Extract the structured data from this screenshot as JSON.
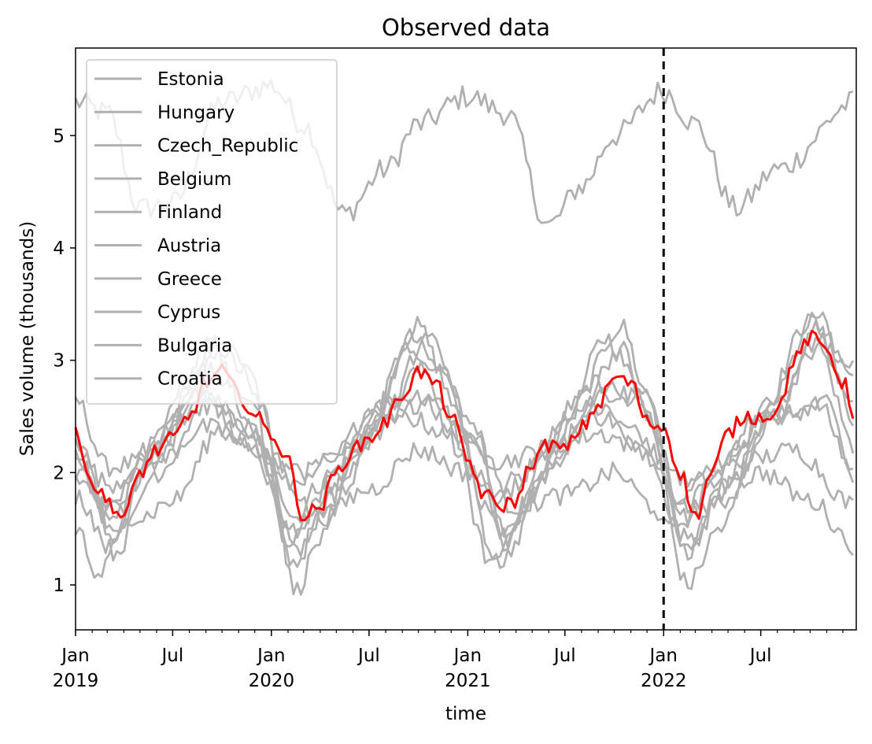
{
  "chart_data": {
    "type": "line",
    "title": "Observed data",
    "xlabel": "time",
    "ylabel": "Sales volume (thousands)",
    "x_range": [
      "2019-01-01",
      "2022-12-26"
    ],
    "ylim": [
      0.6,
      5.78
    ],
    "y_ticks": [
      1,
      2,
      3,
      4,
      5
    ],
    "x_major_ticks": [
      {
        "date": "2019-01-01",
        "label": "Jan",
        "sublabel": "2019"
      },
      {
        "date": "2019-07-01",
        "label": "Jul",
        "sublabel": ""
      },
      {
        "date": "2020-01-01",
        "label": "Jan",
        "sublabel": "2020"
      },
      {
        "date": "2020-07-01",
        "label": "Jul",
        "sublabel": ""
      },
      {
        "date": "2021-01-01",
        "label": "Jan",
        "sublabel": "2021"
      },
      {
        "date": "2021-07-01",
        "label": "Jul",
        "sublabel": ""
      },
      {
        "date": "2022-01-01",
        "label": "Jan",
        "sublabel": "2022"
      },
      {
        "date": "2022-07-01",
        "label": "Jul",
        "sublabel": ""
      }
    ],
    "grid": false,
    "legend_position": "top-left",
    "vline": {
      "date": "2022-01-01",
      "style": "dashed",
      "color": "#000000"
    },
    "highlight_color": "#ff0000",
    "series_color": "#b0b0b0",
    "series": [
      {
        "name": "Estonia",
        "color": "#b0b0b0",
        "anchors": [
          [
            "2019-01-01",
            5.3
          ],
          [
            "2019-03-01",
            5.2
          ],
          [
            "2019-05-01",
            4.35
          ],
          [
            "2019-07-01",
            4.4
          ],
          [
            "2019-10-01",
            5.3
          ],
          [
            "2020-01-01",
            5.45
          ],
          [
            "2020-03-01",
            5.1
          ],
          [
            "2020-05-15",
            4.3
          ],
          [
            "2020-08-01",
            4.7
          ],
          [
            "2020-10-01",
            5.1
          ],
          [
            "2021-01-01",
            5.35
          ],
          [
            "2021-03-15",
            5.2
          ],
          [
            "2021-06-01",
            4.2
          ],
          [
            "2021-08-01",
            4.55
          ],
          [
            "2021-10-01",
            5.0
          ],
          [
            "2022-01-01",
            5.4
          ],
          [
            "2022-03-01",
            5.1
          ],
          [
            "2022-05-15",
            4.35
          ],
          [
            "2022-08-01",
            4.7
          ],
          [
            "2022-12-26",
            5.3
          ]
        ]
      },
      {
        "name": "Hungary",
        "color": "#b0b0b0",
        "anchors": [
          [
            "2019-01-01",
            2.65
          ],
          [
            "2019-03-01",
            2.05
          ],
          [
            "2019-05-15",
            2.1
          ],
          [
            "2019-09-15",
            3.15
          ],
          [
            "2019-11-15",
            2.9
          ],
          [
            "2020-02-15",
            1.6
          ],
          [
            "2020-04-01",
            1.9
          ],
          [
            "2020-07-01",
            2.4
          ],
          [
            "2020-09-15",
            3.2
          ],
          [
            "2020-11-15",
            2.9
          ],
          [
            "2021-02-15",
            1.6
          ],
          [
            "2021-04-01",
            1.95
          ],
          [
            "2021-07-01",
            2.45
          ],
          [
            "2021-09-15",
            3.2
          ],
          [
            "2021-11-15",
            2.8
          ],
          [
            "2022-02-15",
            1.6
          ],
          [
            "2022-04-01",
            1.95
          ],
          [
            "2022-07-01",
            2.55
          ],
          [
            "2022-10-01",
            3.35
          ],
          [
            "2022-12-26",
            2.6
          ]
        ]
      },
      {
        "name": "Czech_Republic",
        "color": "#b0b0b0",
        "anchors": [
          [
            "2019-01-01",
            2.3
          ],
          [
            "2019-03-15",
            1.4
          ],
          [
            "2019-06-01",
            2.3
          ],
          [
            "2019-09-15",
            3.1
          ],
          [
            "2019-11-15",
            2.5
          ],
          [
            "2020-02-15",
            1.2
          ],
          [
            "2020-04-01",
            1.6
          ],
          [
            "2020-07-01",
            2.5
          ],
          [
            "2020-10-01",
            3.3
          ],
          [
            "2020-11-15",
            2.9
          ],
          [
            "2021-03-01",
            1.2
          ],
          [
            "2021-05-01",
            1.8
          ],
          [
            "2021-07-15",
            2.6
          ],
          [
            "2021-10-15",
            3.3
          ],
          [
            "2021-12-01",
            2.7
          ],
          [
            "2022-02-15",
            1.3
          ],
          [
            "2022-04-15",
            1.8
          ],
          [
            "2022-07-15",
            2.6
          ],
          [
            "2022-10-15",
            3.4
          ],
          [
            "2022-12-26",
            2.4
          ]
        ]
      },
      {
        "name": "Belgium",
        "color": "#b0b0b0",
        "anchors": [
          [
            "2019-01-01",
            2.0
          ],
          [
            "2019-03-01",
            1.7
          ],
          [
            "2019-05-15",
            2.2
          ],
          [
            "2019-08-15",
            2.7
          ],
          [
            "2019-11-15",
            2.4
          ],
          [
            "2020-02-01",
            1.9
          ],
          [
            "2020-04-15",
            2.1
          ],
          [
            "2020-07-15",
            2.6
          ],
          [
            "2020-10-15",
            2.7
          ],
          [
            "2021-01-15",
            2.3
          ],
          [
            "2021-03-15",
            1.85
          ],
          [
            "2021-06-01",
            2.2
          ],
          [
            "2021-09-01",
            2.5
          ],
          [
            "2021-11-15",
            2.35
          ],
          [
            "2022-02-01",
            1.8
          ],
          [
            "2022-04-15",
            2.1
          ],
          [
            "2022-07-15",
            2.5
          ],
          [
            "2022-10-15",
            2.6
          ],
          [
            "2022-12-26",
            2.0
          ]
        ]
      },
      {
        "name": "Finland",
        "color": "#b0b0b0",
        "anchors": [
          [
            "2019-01-01",
            1.5
          ],
          [
            "2019-02-15",
            1.1
          ],
          [
            "2019-05-01",
            2.0
          ],
          [
            "2019-08-01",
            2.8
          ],
          [
            "2019-10-15",
            3.2
          ],
          [
            "2019-12-15",
            2.6
          ],
          [
            "2020-02-15",
            0.95
          ],
          [
            "2020-04-01",
            1.4
          ],
          [
            "2020-07-01",
            2.4
          ],
          [
            "2020-09-15",
            3.1
          ],
          [
            "2020-11-15",
            2.6
          ],
          [
            "2021-02-15",
            1.2
          ],
          [
            "2021-04-15",
            1.7
          ],
          [
            "2021-07-15",
            2.5
          ],
          [
            "2021-10-15",
            3.1
          ],
          [
            "2021-12-01",
            2.5
          ],
          [
            "2022-02-15",
            1.0
          ],
          [
            "2022-04-15",
            1.5
          ],
          [
            "2022-07-15",
            2.5
          ],
          [
            "2022-10-15",
            3.1
          ],
          [
            "2022-12-26",
            2.2
          ]
        ]
      },
      {
        "name": "Austria",
        "color": "#b0b0b0",
        "anchors": [
          [
            "2019-01-01",
            2.2
          ],
          [
            "2019-03-01",
            1.9
          ],
          [
            "2019-06-01",
            2.1
          ],
          [
            "2019-09-01",
            2.4
          ],
          [
            "2019-12-01",
            2.2
          ],
          [
            "2020-03-01",
            2.0
          ],
          [
            "2020-06-01",
            2.2
          ],
          [
            "2020-09-01",
            2.5
          ],
          [
            "2020-12-01",
            2.35
          ],
          [
            "2021-03-01",
            2.1
          ],
          [
            "2021-06-01",
            2.2
          ],
          [
            "2021-09-01",
            2.35
          ],
          [
            "2021-12-01",
            2.2
          ],
          [
            "2022-03-01",
            1.9
          ],
          [
            "2022-06-01",
            2.1
          ],
          [
            "2022-09-01",
            2.2
          ],
          [
            "2022-12-26",
            1.7
          ]
        ]
      },
      {
        "name": "Greece",
        "color": "#b0b0b0",
        "anchors": [
          [
            "2019-01-01",
            1.8
          ],
          [
            "2019-03-15",
            1.3
          ],
          [
            "2019-06-01",
            2.0
          ],
          [
            "2019-09-01",
            2.6
          ],
          [
            "2019-11-15",
            2.3
          ],
          [
            "2020-02-15",
            1.4
          ],
          [
            "2020-05-01",
            1.9
          ],
          [
            "2020-08-01",
            2.5
          ],
          [
            "2020-10-15",
            2.6
          ],
          [
            "2021-01-15",
            2.0
          ],
          [
            "2021-03-15",
            1.4
          ],
          [
            "2021-06-01",
            2.0
          ],
          [
            "2021-09-01",
            2.6
          ],
          [
            "2021-11-15",
            2.2
          ],
          [
            "2022-02-15",
            1.4
          ],
          [
            "2022-05-01",
            1.9
          ],
          [
            "2022-08-01",
            2.5
          ],
          [
            "2022-11-01",
            2.6
          ],
          [
            "2022-12-26",
            1.9
          ]
        ]
      },
      {
        "name": "Cyprus",
        "color": "#b0b0b0",
        "anchors": [
          [
            "2019-01-01",
            1.95
          ],
          [
            "2019-03-01",
            1.7
          ],
          [
            "2019-05-01",
            1.6
          ],
          [
            "2019-07-01",
            1.75
          ],
          [
            "2019-10-01",
            2.4
          ],
          [
            "2020-01-01",
            2.1
          ],
          [
            "2020-04-01",
            1.6
          ],
          [
            "2020-07-01",
            1.85
          ],
          [
            "2020-10-01",
            2.2
          ],
          [
            "2021-01-01",
            2.0
          ],
          [
            "2021-04-01",
            1.7
          ],
          [
            "2021-07-01",
            1.8
          ],
          [
            "2021-10-01",
            2.0
          ],
          [
            "2021-12-15",
            1.7
          ],
          [
            "2022-01-01",
            1.5
          ],
          [
            "2022-04-01",
            1.7
          ],
          [
            "2022-07-01",
            2.0
          ],
          [
            "2022-10-01",
            1.75
          ],
          [
            "2022-12-26",
            1.35
          ]
        ]
      },
      {
        "name": "Bulgaria",
        "color": "#b0b0b0",
        "anchors": [
          [
            "2019-01-01",
            2.2
          ],
          [
            "2019-03-15",
            1.5
          ],
          [
            "2019-06-01",
            2.2
          ],
          [
            "2019-09-01",
            2.7
          ],
          [
            "2019-11-15",
            2.4
          ],
          [
            "2020-02-15",
            1.5
          ],
          [
            "2020-05-01",
            2.0
          ],
          [
            "2020-08-01",
            2.6
          ],
          [
            "2020-10-15",
            3.0
          ],
          [
            "2021-01-15",
            2.3
          ],
          [
            "2021-03-15",
            1.5
          ],
          [
            "2021-06-01",
            2.2
          ],
          [
            "2021-09-01",
            2.8
          ],
          [
            "2021-11-15",
            2.6
          ],
          [
            "2022-02-01",
            1.7
          ],
          [
            "2022-05-01",
            2.1
          ],
          [
            "2022-08-01",
            2.5
          ],
          [
            "2022-10-15",
            3.2
          ],
          [
            "2022-12-26",
            2.8
          ]
        ]
      },
      {
        "name": "Croatia",
        "color": "#b0b0b0",
        "anchors": [
          [
            "2019-01-01",
            2.2
          ],
          [
            "2019-03-01",
            1.6
          ],
          [
            "2019-06-01",
            2.1
          ],
          [
            "2019-09-01",
            2.9
          ],
          [
            "2019-11-15",
            2.7
          ],
          [
            "2020-02-15",
            1.3
          ],
          [
            "2020-05-01",
            1.8
          ],
          [
            "2020-08-01",
            2.5
          ],
          [
            "2020-10-15",
            3.2
          ],
          [
            "2021-01-15",
            2.4
          ],
          [
            "2021-03-15",
            1.3
          ],
          [
            "2021-06-01",
            2.1
          ],
          [
            "2021-09-01",
            2.7
          ],
          [
            "2021-11-15",
            2.7
          ],
          [
            "2022-02-15",
            1.3
          ],
          [
            "2022-05-01",
            1.9
          ],
          [
            "2022-08-01",
            2.6
          ],
          [
            "2022-10-15",
            3.3
          ],
          [
            "2022-12-26",
            2.9
          ]
        ]
      },
      {
        "name": "",
        "color": "#ff0000",
        "highlight": true,
        "anchors": [
          [
            "2019-01-01",
            2.4
          ],
          [
            "2019-02-01",
            1.9
          ],
          [
            "2019-03-01",
            1.75
          ],
          [
            "2019-04-01",
            1.6
          ],
          [
            "2019-05-01",
            2.0
          ],
          [
            "2019-06-01",
            2.2
          ],
          [
            "2019-07-01",
            2.3
          ],
          [
            "2019-08-01",
            2.5
          ],
          [
            "2019-09-01",
            2.8
          ],
          [
            "2019-10-01",
            2.9
          ],
          [
            "2019-11-01",
            2.7
          ],
          [
            "2019-12-01",
            2.5
          ],
          [
            "2020-01-01",
            2.35
          ],
          [
            "2020-02-01",
            2.1
          ],
          [
            "2020-03-01",
            1.6
          ],
          [
            "2020-04-01",
            1.7
          ],
          [
            "2020-05-01",
            2.0
          ],
          [
            "2020-06-01",
            2.2
          ],
          [
            "2020-07-01",
            2.3
          ],
          [
            "2020-08-01",
            2.45
          ],
          [
            "2020-09-01",
            2.7
          ],
          [
            "2020-10-01",
            2.9
          ],
          [
            "2020-11-01",
            2.8
          ],
          [
            "2020-12-01",
            2.5
          ],
          [
            "2021-01-01",
            2.1
          ],
          [
            "2021-02-01",
            1.8
          ],
          [
            "2021-03-01",
            1.7
          ],
          [
            "2021-04-01",
            1.75
          ],
          [
            "2021-05-01",
            2.1
          ],
          [
            "2021-06-01",
            2.25
          ],
          [
            "2021-07-01",
            2.2
          ],
          [
            "2021-08-01",
            2.4
          ],
          [
            "2021-09-01",
            2.6
          ],
          [
            "2021-10-01",
            2.85
          ],
          [
            "2021-11-01",
            2.8
          ],
          [
            "2021-12-01",
            2.45
          ],
          [
            "2022-01-01",
            2.4
          ],
          [
            "2022-02-01",
            2.0
          ],
          [
            "2022-03-01",
            1.6
          ],
          [
            "2022-04-01",
            2.0
          ],
          [
            "2022-05-01",
            2.35
          ],
          [
            "2022-06-01",
            2.5
          ],
          [
            "2022-07-01",
            2.5
          ],
          [
            "2022-08-01",
            2.55
          ],
          [
            "2022-09-01",
            3.0
          ],
          [
            "2022-10-01",
            3.2
          ],
          [
            "2022-11-01",
            3.1
          ],
          [
            "2022-12-01",
            2.8
          ],
          [
            "2022-12-26",
            2.5
          ]
        ]
      }
    ]
  }
}
